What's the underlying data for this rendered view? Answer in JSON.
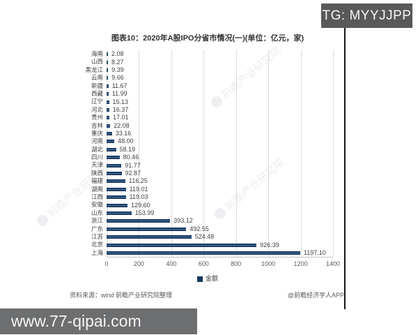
{
  "overlay": {
    "tg_badge": "TG: MYYJJPP",
    "site_banner": "www.77-qipai.com"
  },
  "chart": {
    "title": "图表10：2020年A股IPO分省市情况(一)(单位：亿元，家)",
    "legend_label": "金额",
    "source_note": "资料来源：wind 前瞻产业研究院整理",
    "credit": "@前瞻经济学人APP",
    "watermark_text": "前瞻产业研究院",
    "bar_color": "#17375e",
    "grid_color": "#dcdcdc"
  },
  "chart_data": {
    "type": "bar",
    "orientation": "horizontal",
    "title": "图表10：2020年A股IPO分省市情况(一)(单位：亿元，家)",
    "unit": "亿元",
    "categories": [
      "海南",
      "山西",
      "黑龙江",
      "云南",
      "新疆",
      "西藏",
      "辽宁",
      "河北",
      "贵州",
      "吉林",
      "重庆",
      "河南",
      "湖北",
      "四川",
      "天津",
      "陕西",
      "福建",
      "湖南",
      "江西",
      "安徽",
      "山东",
      "浙江",
      "广东",
      "江苏",
      "北京",
      "上海"
    ],
    "series": [
      {
        "name": "金额",
        "values": [
          2.08,
          8.27,
          9.39,
          9.66,
          11.67,
          11.99,
          15.13,
          16.37,
          17.01,
          22.08,
          33.16,
          48.0,
          58.19,
          80.46,
          91.77,
          92.87,
          116.25,
          119.01,
          119.03,
          129.6,
          153.99,
          393.12,
          492.55,
          524.48,
          926.39,
          1197.1
        ]
      }
    ],
    "xlim": [
      0,
      1400
    ],
    "xticks": [
      0,
      200,
      400,
      600,
      800,
      1000,
      1200,
      1400
    ],
    "grid": "vertical",
    "legend_position": "bottom",
    "data_labels": true
  }
}
